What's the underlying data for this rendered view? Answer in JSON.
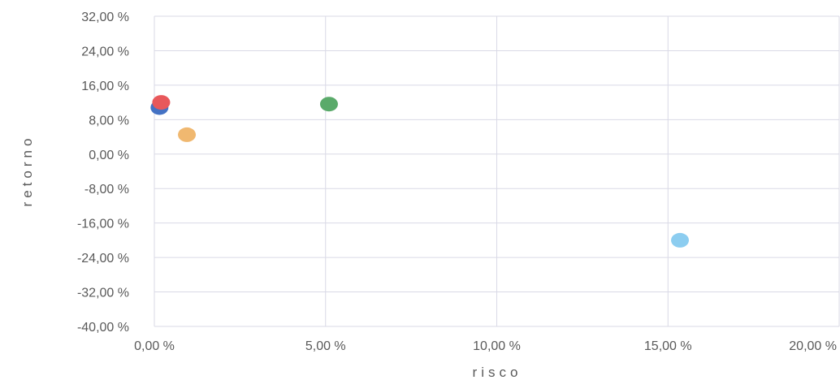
{
  "chart_data": {
    "type": "scatter",
    "xlabel": "risco",
    "ylabel": "retorno",
    "xlim": [
      0,
      20
    ],
    "ylim": [
      -40,
      32
    ],
    "x_ticks": [
      0,
      5,
      10,
      15,
      20
    ],
    "y_ticks": [
      32,
      24,
      16,
      8,
      0,
      -8,
      -16,
      -24,
      -32,
      -40
    ],
    "x_tick_labels": [
      "0,00 %",
      "5,00 %",
      "10,00 %",
      "15,00 %",
      "20,00 %"
    ],
    "y_tick_labels": [
      "32,00 %",
      "24,00 %",
      "16,00 %",
      "8,00 %",
      "0,00 %",
      "-8,00 %",
      "-16,00 %",
      "-24,00 %",
      "-32,00 %",
      "-40,00 %"
    ],
    "grid": true,
    "series": [
      {
        "color": "#4472c4",
        "points": [
          {
            "x": 0.15,
            "y": 10.8
          }
        ]
      },
      {
        "color": "#e8585b",
        "points": [
          {
            "x": 0.2,
            "y": 12.0
          }
        ]
      },
      {
        "color": "#f0b870",
        "points": [
          {
            "x": 0.95,
            "y": 4.5
          }
        ]
      },
      {
        "color": "#5aaa6a",
        "points": [
          {
            "x": 5.1,
            "y": 11.6
          }
        ]
      },
      {
        "color": "#8ccdf0",
        "points": [
          {
            "x": 15.35,
            "y": -20.0
          }
        ]
      }
    ]
  }
}
